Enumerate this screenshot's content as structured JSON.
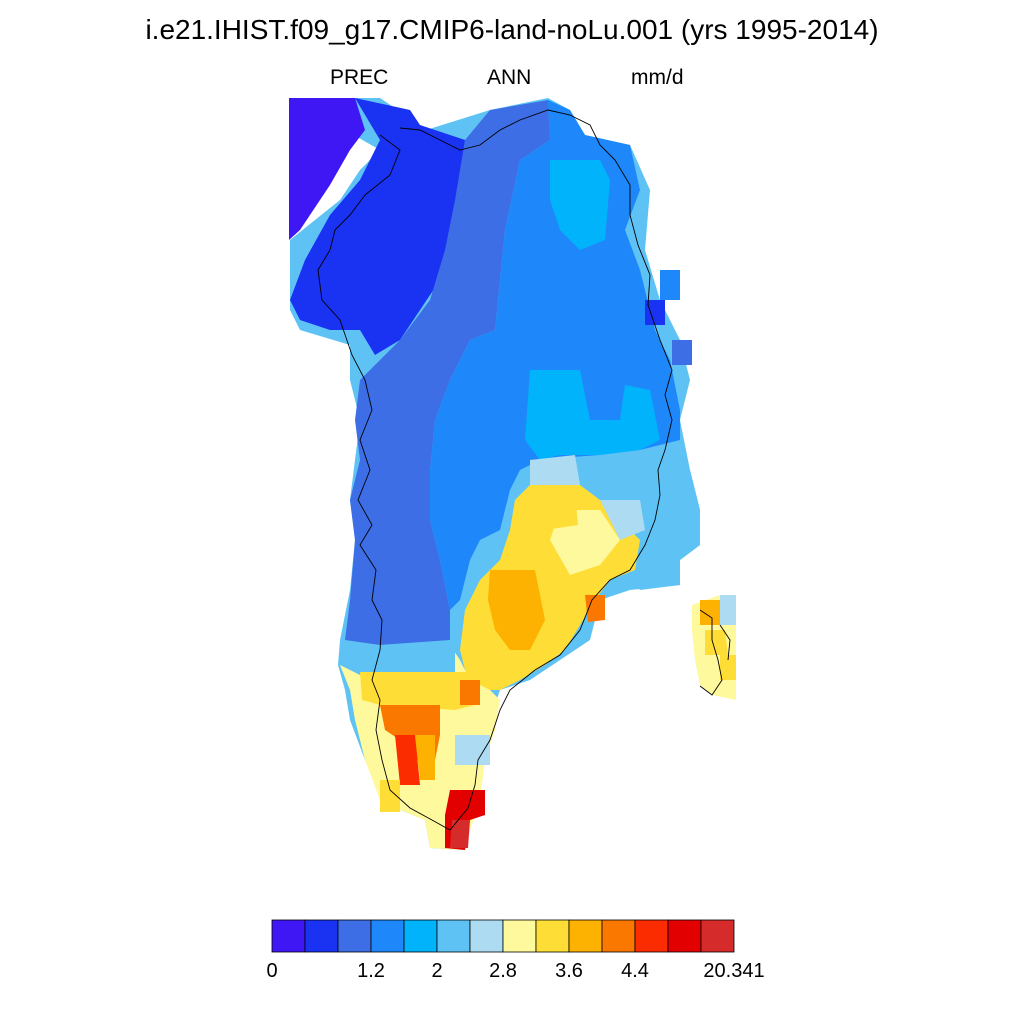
{
  "title": "i.e21.IHIST.f09_g17.CMIP6-land-noLu.001 (yrs 1995-2014)",
  "subtitle": {
    "left": "PREC",
    "center": "ANN",
    "right": "mm/d"
  },
  "colorbar": {
    "colors": [
      "#3f17f5",
      "#1a32f2",
      "#3d6ee6",
      "#1e88fb",
      "#00b3fb",
      "#5ec3f4",
      "#acdbf2",
      "#fef99c",
      "#fede36",
      "#fdb100",
      "#fb7800",
      "#fb2c00",
      "#e30000",
      "#d62b2b"
    ],
    "labels": [
      "0",
      "",
      "1.2",
      "2",
      "2.8",
      "3.6",
      "4.4",
      "",
      "20.341"
    ]
  },
  "map": {
    "variable": "PREC",
    "season": "ANN",
    "units": "mm/d",
    "region": "Greenland",
    "notes": "gridded annual mean precipitation; colors map to colorbar bins 0-13"
  }
}
